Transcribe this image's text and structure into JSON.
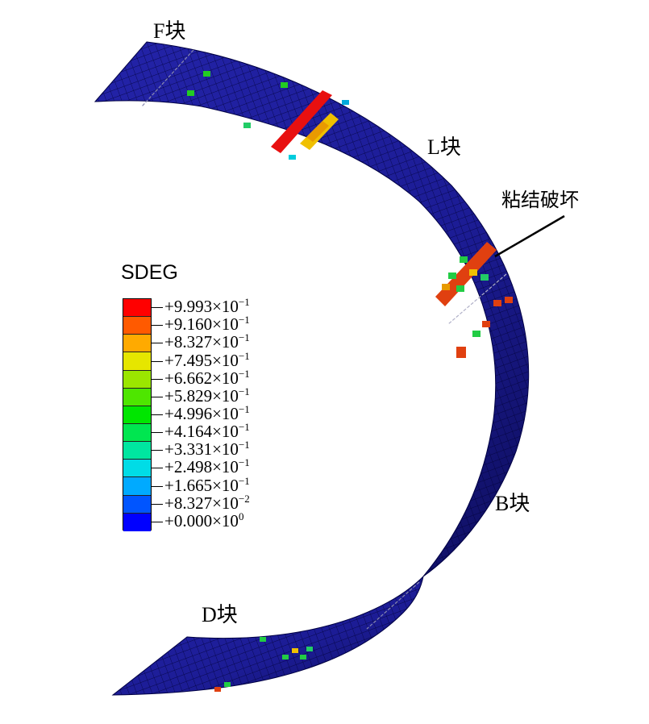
{
  "labels": {
    "F": "F块",
    "L": "L块",
    "B": "B块",
    "D": "D块",
    "annotation": "粘结破坏"
  },
  "legend": {
    "title": "SDEG",
    "colors": [
      "#ff0000",
      "#ff5a00",
      "#ffaa00",
      "#e6e600",
      "#9be600",
      "#4ee600",
      "#00e600",
      "#00e650",
      "#00e6a0",
      "#00dce6",
      "#00aaff",
      "#0055ff",
      "#0000ff"
    ],
    "values": [
      {
        "mantissa": "+9.993",
        "exponent": "−1"
      },
      {
        "mantissa": "+9.160",
        "exponent": "−1"
      },
      {
        "mantissa": "+8.327",
        "exponent": "−1"
      },
      {
        "mantissa": "+7.495",
        "exponent": "−1"
      },
      {
        "mantissa": "+6.662",
        "exponent": "−1"
      },
      {
        "mantissa": "+5.829",
        "exponent": "−1"
      },
      {
        "mantissa": "+4.996",
        "exponent": "−1"
      },
      {
        "mantissa": "+4.164",
        "exponent": "−1"
      },
      {
        "mantissa": "+3.331",
        "exponent": "−1"
      },
      {
        "mantissa": "+2.498",
        "exponent": "−1"
      },
      {
        "mantissa": "+1.665",
        "exponent": "−1"
      },
      {
        "mantissa": "+8.327",
        "exponent": "−2"
      },
      {
        "mantissa": "+0.000",
        "exponent": "0"
      }
    ]
  },
  "colors": {
    "ring": "#1f1f9a",
    "ring_dark": "#0c0c55",
    "mesh_line": "#000033"
  }
}
